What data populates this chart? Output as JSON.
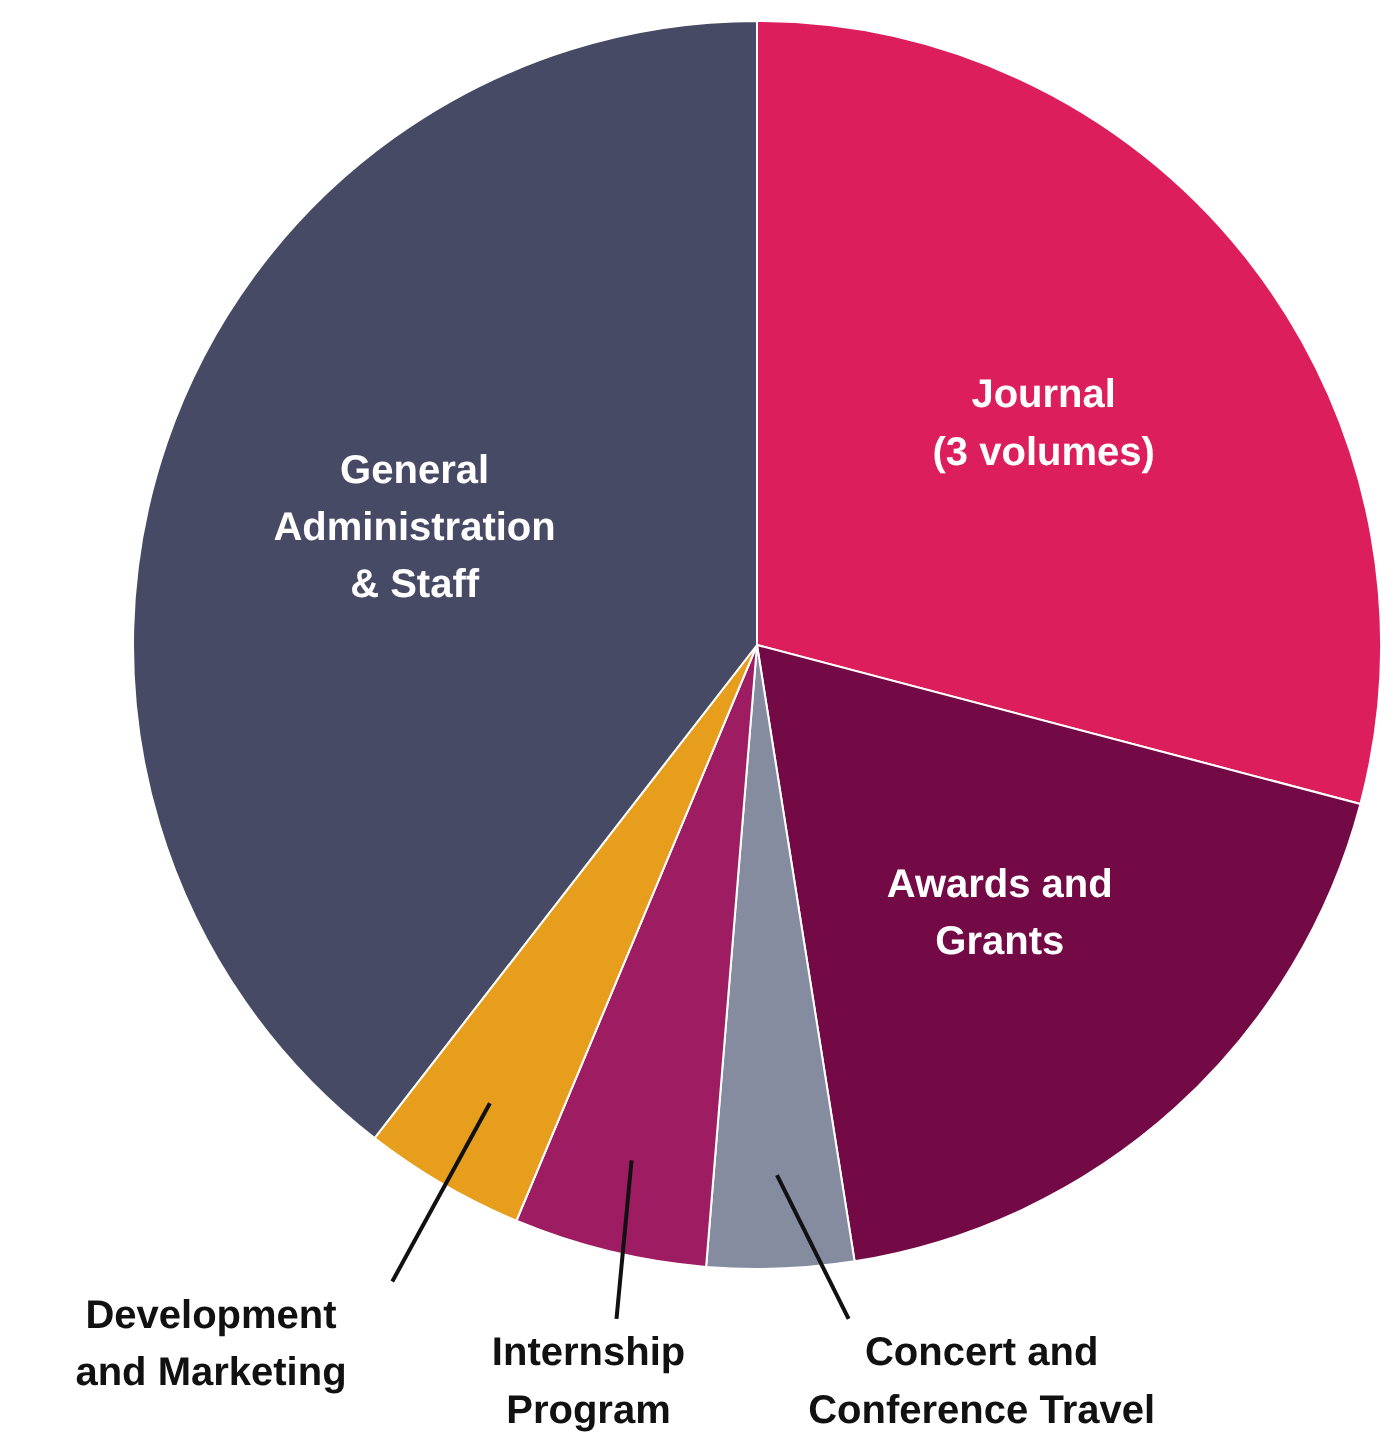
{
  "chart_data": {
    "type": "pie",
    "categories": [
      "Journal\n(3 volumes)",
      "Awards and\nGrants",
      "Concert and\nConference Travel",
      "Internship\nProgram",
      "Development\nand Marketing",
      "General\nAdministration\n& Staff"
    ],
    "values": [
      29.1,
      18.4,
      3.8,
      5.0,
      4.2,
      39.5
    ],
    "colors": [
      "#dc1f5c",
      "#730a46",
      "#868ca0",
      "#9e1c62",
      "#e69e1c",
      "#464a64"
    ]
  }
}
